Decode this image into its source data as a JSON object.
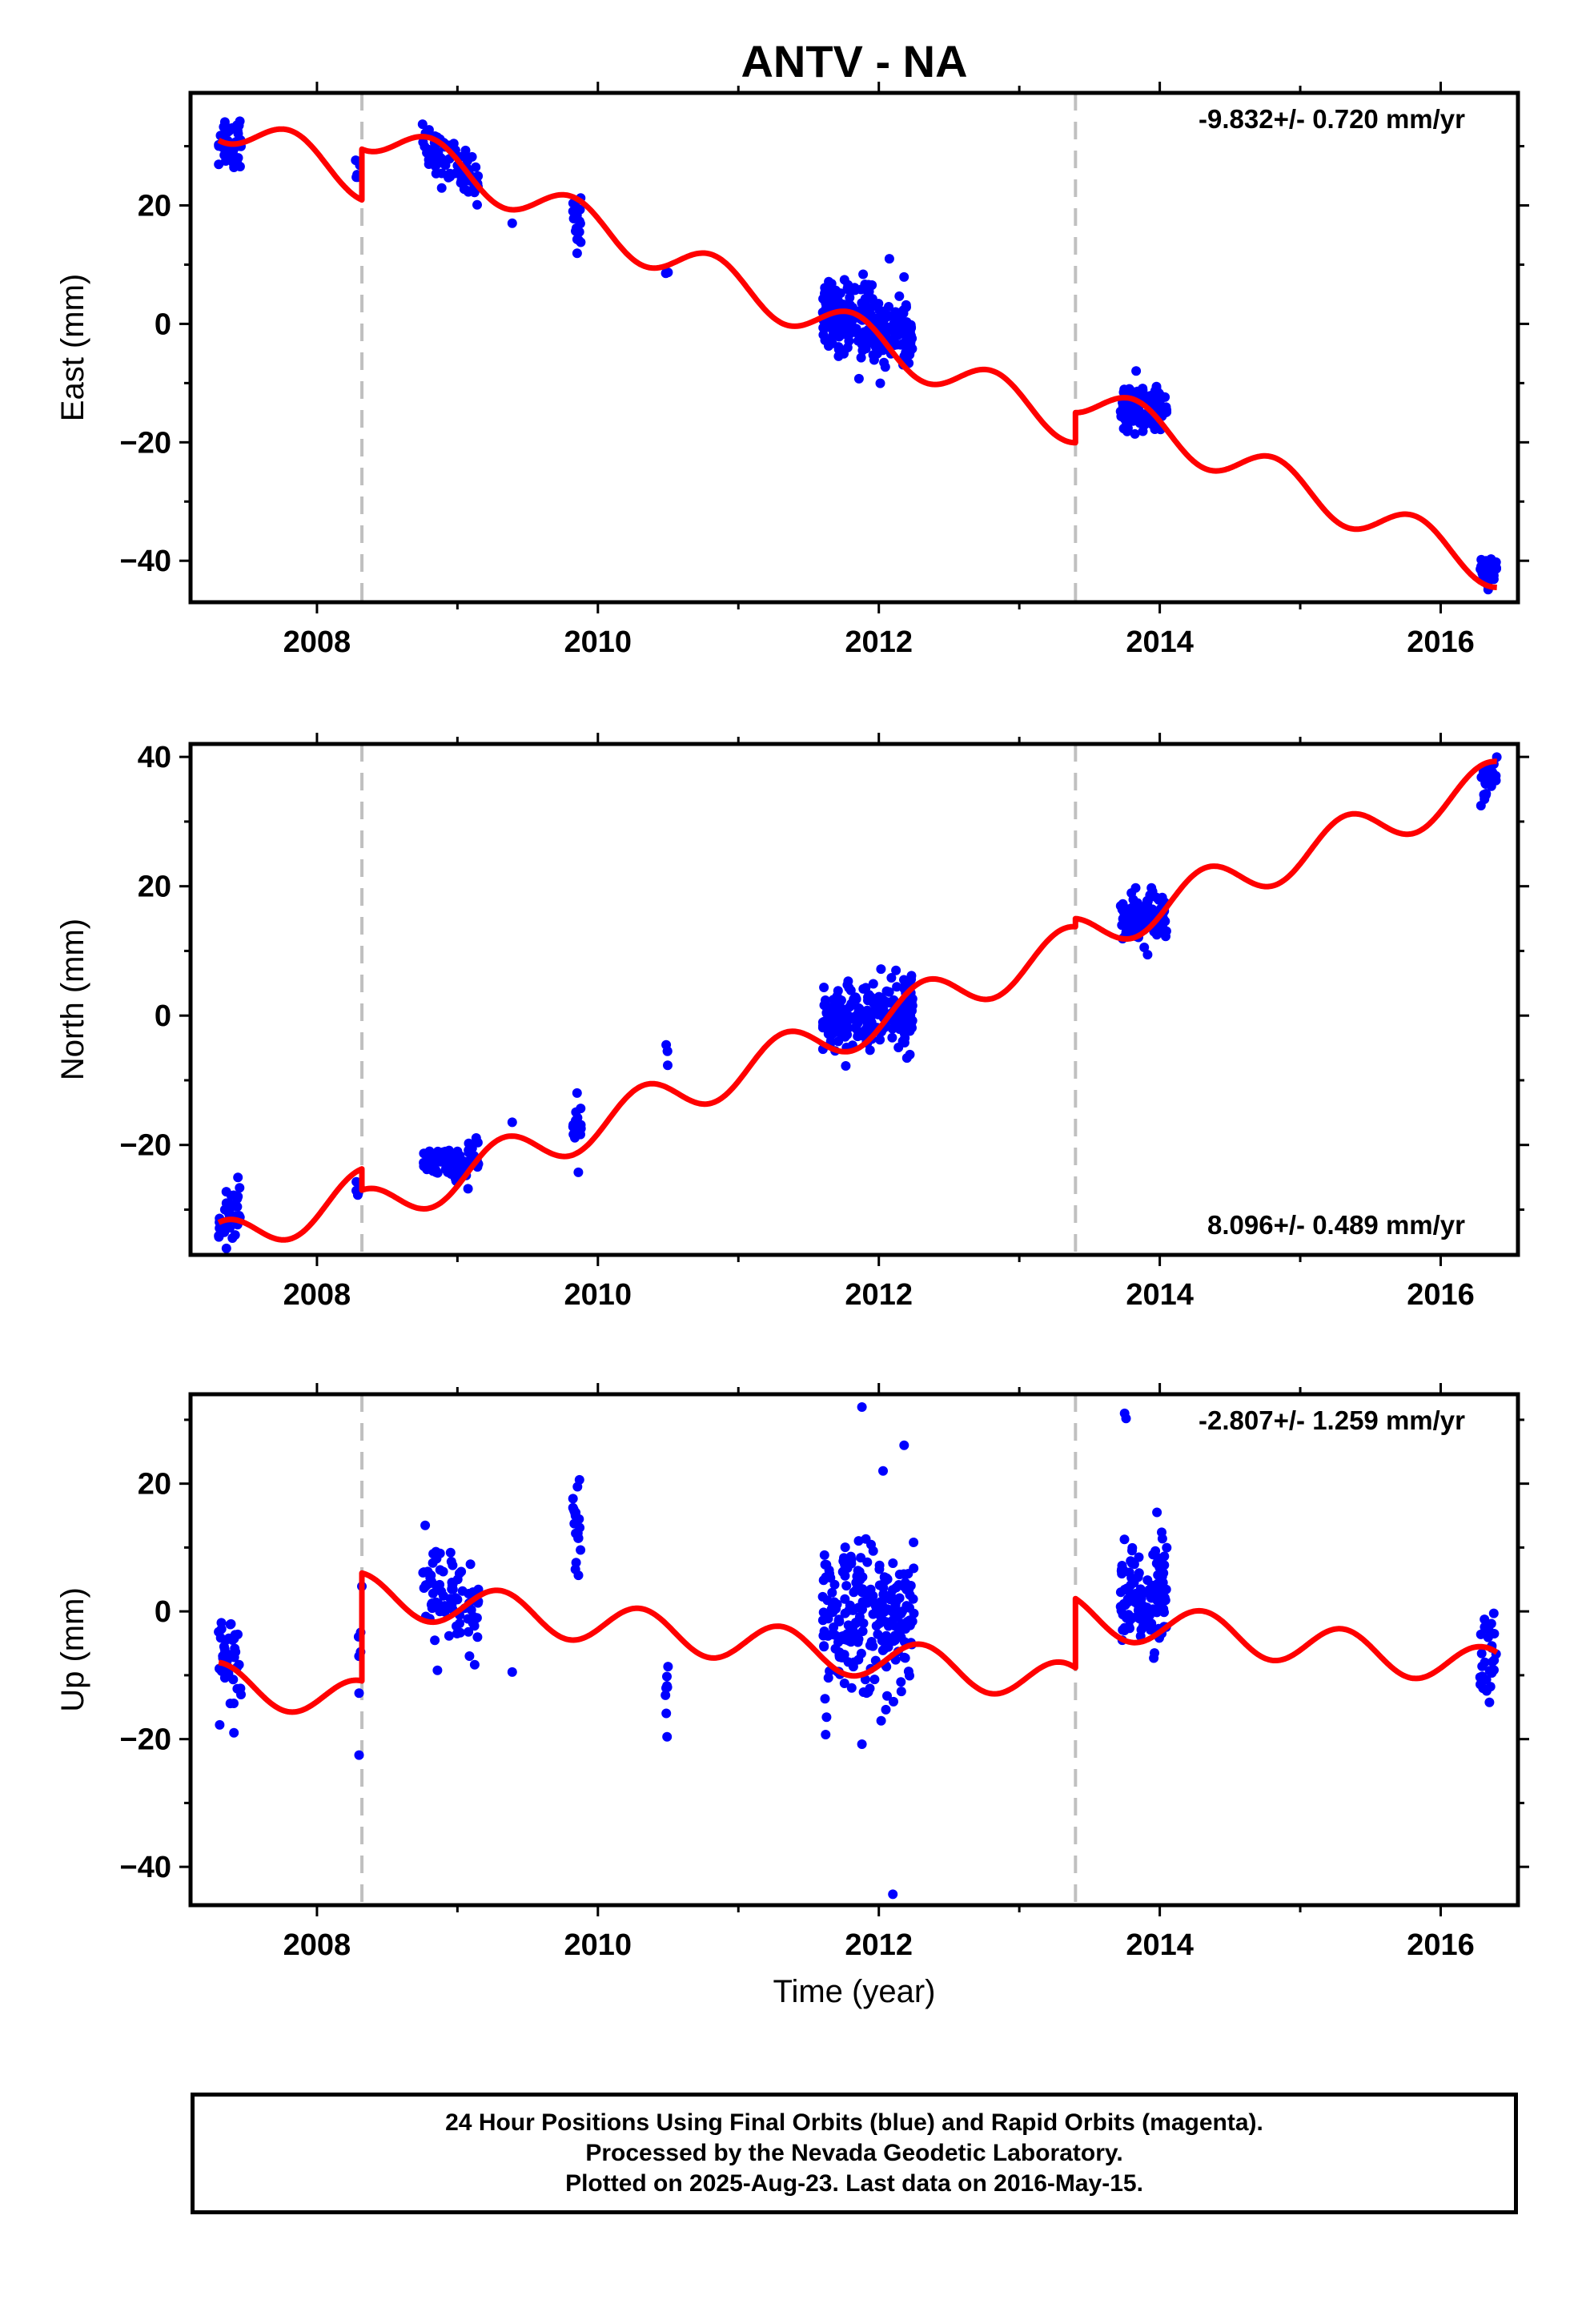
{
  "title": "ANTV - NA",
  "x_axis_label": "Time (year)",
  "footer": {
    "lines": [
      "24 Hour Positions Using Final Orbits (blue) and Rapid Orbits (magenta).",
      "Processed by the Nevada Geodetic Laboratory.",
      "Plotted on 2025-Aug-23. Last data on 2016-May-15."
    ]
  },
  "colors": {
    "data_points": "#0000ff",
    "model_line": "#ff0000",
    "step_lines": "#c0c0c0",
    "axes": "#000000"
  },
  "chart_data": [
    {
      "type": "scatter",
      "component": "east",
      "ylabel": "East (mm)",
      "xlim": [
        2007.1,
        2016.55
      ],
      "ylim": [
        -47,
        39
      ],
      "xticks": [
        2008,
        2010,
        2012,
        2014,
        2016
      ],
      "yticks": [
        -40,
        -20,
        0,
        20
      ],
      "rate_label": "-9.832+/- 0.720 mm/yr",
      "rate_label_position": "top-right",
      "steps": [
        2008.32,
        2013.4
      ],
      "data_clusters": [
        {
          "t_start": 2007.3,
          "t_end": 2007.46,
          "n": 45,
          "center": 31,
          "spread": 2.5,
          "trend": 0
        },
        {
          "t_start": 2008.27,
          "t_end": 2008.32,
          "n": 5,
          "center": 26,
          "spread": 1.5,
          "trend": 0
        },
        {
          "t_start": 2008.75,
          "t_end": 2009.15,
          "n": 80,
          "center": 27,
          "spread": 2.0,
          "trend": -5
        },
        {
          "t_start": 2009.38,
          "t_end": 2009.4,
          "n": 1,
          "center": 17,
          "spread": 0,
          "trend": 0
        },
        {
          "t_start": 2009.82,
          "t_end": 2009.88,
          "n": 20,
          "center": 18,
          "spread": 2.5,
          "trend": 0
        },
        {
          "t_start": 2010.48,
          "t_end": 2010.5,
          "n": 3,
          "center": 8.5,
          "spread": 0.8,
          "trend": 0
        },
        {
          "t_start": 2011.6,
          "t_end": 2012.25,
          "n": 250,
          "center": 0.5,
          "spread": 3.0,
          "trend": -4
        },
        {
          "t_start": 2013.72,
          "t_end": 2014.05,
          "n": 120,
          "center": -14.5,
          "spread": 2.0,
          "trend": 0
        },
        {
          "t_start": 2016.28,
          "t_end": 2016.4,
          "n": 30,
          "center": -42,
          "spread": 1.5,
          "trend": -1
        }
      ],
      "model": {
        "segments": [
          {
            "t_start": 2007.3,
            "t_end": 2008.32,
            "t_ref": 2007.3,
            "offset": 31.0
          },
          {
            "t_start": 2008.32,
            "t_end": 2013.4,
            "t_ref": 2008.32,
            "offset": 29.5
          },
          {
            "t_start": 2013.4,
            "t_end": 2016.4,
            "t_ref": 2013.4,
            "offset": -15.0
          }
        ],
        "rate": -9.832,
        "annual_sin": -3.0,
        "annual_cos": 1.5
      }
    },
    {
      "type": "scatter",
      "component": "north",
      "ylabel": "North (mm)",
      "xlim": [
        2007.1,
        2016.55
      ],
      "ylim": [
        -37,
        42
      ],
      "xticks": [
        2008,
        2010,
        2012,
        2014,
        2016
      ],
      "yticks": [
        -20,
        0,
        20,
        40
      ],
      "rate_label": "8.096+/- 0.489 mm/yr",
      "rate_label_position": "bottom-right",
      "steps": [
        2008.32,
        2013.4
      ],
      "data_clusters": [
        {
          "t_start": 2007.3,
          "t_end": 2007.46,
          "n": 40,
          "center": -31,
          "spread": 2.0,
          "trend": 3
        },
        {
          "t_start": 2008.27,
          "t_end": 2008.32,
          "n": 6,
          "center": -27,
          "spread": 1.0,
          "trend": 0
        },
        {
          "t_start": 2008.75,
          "t_end": 2009.15,
          "n": 80,
          "center": -22.5,
          "spread": 1.5,
          "trend": 0
        },
        {
          "t_start": 2009.38,
          "t_end": 2009.4,
          "n": 1,
          "center": -16.5,
          "spread": 0,
          "trend": 0
        },
        {
          "t_start": 2009.82,
          "t_end": 2009.88,
          "n": 20,
          "center": -17,
          "spread": 1.8,
          "trend": 0
        },
        {
          "t_start": 2010.48,
          "t_end": 2010.5,
          "n": 4,
          "center": -5.5,
          "spread": 1.2,
          "trend": 0
        },
        {
          "t_start": 2011.6,
          "t_end": 2012.25,
          "n": 250,
          "center": 0,
          "spread": 2.5,
          "trend": 2
        },
        {
          "t_start": 2013.72,
          "t_end": 2014.05,
          "n": 120,
          "center": 15.5,
          "spread": 1.8,
          "trend": 0
        },
        {
          "t_start": 2016.28,
          "t_end": 2016.4,
          "n": 30,
          "center": 36,
          "spread": 1.5,
          "trend": 3
        }
      ],
      "model": {
        "segments": [
          {
            "t_start": 2007.3,
            "t_end": 2008.32,
            "t_ref": 2007.3,
            "offset": -32.0
          },
          {
            "t_start": 2008.32,
            "t_end": 2013.4,
            "t_ref": 2008.32,
            "offset": -27.0
          },
          {
            "t_start": 2013.4,
            "t_end": 2016.4,
            "t_ref": 2013.4,
            "offset": 15.0
          }
        ],
        "rate": 8.096,
        "annual_sin": 3.0,
        "annual_cos": -1.5
      }
    },
    {
      "type": "scatter",
      "component": "up",
      "ylabel": "Up (mm)",
      "xlim": [
        2007.1,
        2016.55
      ],
      "ylim": [
        -46,
        34
      ],
      "xticks": [
        2008,
        2010,
        2012,
        2014,
        2016
      ],
      "yticks": [
        -40,
        -20,
        0,
        20
      ],
      "rate_label": "-2.807+/- 1.259 mm/yr",
      "rate_label_position": "top-right",
      "steps": [
        2008.32,
        2013.4
      ],
      "data_clusters": [
        {
          "t_start": 2007.3,
          "t_end": 2007.46,
          "n": 45,
          "center": -8,
          "spread": 4.5,
          "trend": 0
        },
        {
          "t_start": 2008.27,
          "t_end": 2008.32,
          "n": 6,
          "center": -8,
          "spread": 5.0,
          "trend": 0
        },
        {
          "t_start": 2008.75,
          "t_end": 2009.15,
          "n": 80,
          "center": 3,
          "spread": 4.0,
          "trend": -3
        },
        {
          "t_start": 2009.38,
          "t_end": 2009.4,
          "n": 1,
          "center": -9.5,
          "spread": 0,
          "trend": 0
        },
        {
          "t_start": 2009.82,
          "t_end": 2009.88,
          "n": 20,
          "center": 12,
          "spread": 4.0,
          "trend": 0
        },
        {
          "t_start": 2010.48,
          "t_end": 2010.5,
          "n": 8,
          "center": -13,
          "spread": 3.5,
          "trend": 0
        },
        {
          "t_start": 2011.6,
          "t_end": 2012.25,
          "n": 250,
          "center": -1,
          "spread": 5.5,
          "trend": 0
        },
        {
          "t_start": 2013.72,
          "t_end": 2014.05,
          "n": 120,
          "center": 2,
          "spread": 4.0,
          "trend": 0
        },
        {
          "t_start": 2016.28,
          "t_end": 2016.4,
          "n": 30,
          "center": -6,
          "spread": 3.5,
          "trend": 0
        }
      ],
      "outliers": [
        {
          "t": 2008.3,
          "v": -22.5
        },
        {
          "t": 2011.88,
          "v": 32.0
        },
        {
          "t": 2011.88,
          "v": -20.8
        },
        {
          "t": 2012.03,
          "v": 22.0
        },
        {
          "t": 2012.18,
          "v": 26.0
        },
        {
          "t": 2012.1,
          "v": -44.3
        },
        {
          "t": 2013.75,
          "v": 31.0
        },
        {
          "t": 2013.76,
          "v": 30.2
        },
        {
          "t": 2013.98,
          "v": 15.5
        }
      ],
      "model": {
        "segments": [
          {
            "t_start": 2007.3,
            "t_end": 2008.32,
            "t_ref": 2007.3,
            "offset": -8.0
          },
          {
            "t_start": 2008.32,
            "t_end": 2013.4,
            "t_ref": 2008.32,
            "offset": 6.0
          },
          {
            "t_start": 2013.4,
            "t_end": 2016.4,
            "t_ref": 2013.4,
            "offset": 2.0
          }
        ],
        "rate": -2.807,
        "annual_sin": 3.0,
        "annual_cos": -1.0
      }
    }
  ]
}
